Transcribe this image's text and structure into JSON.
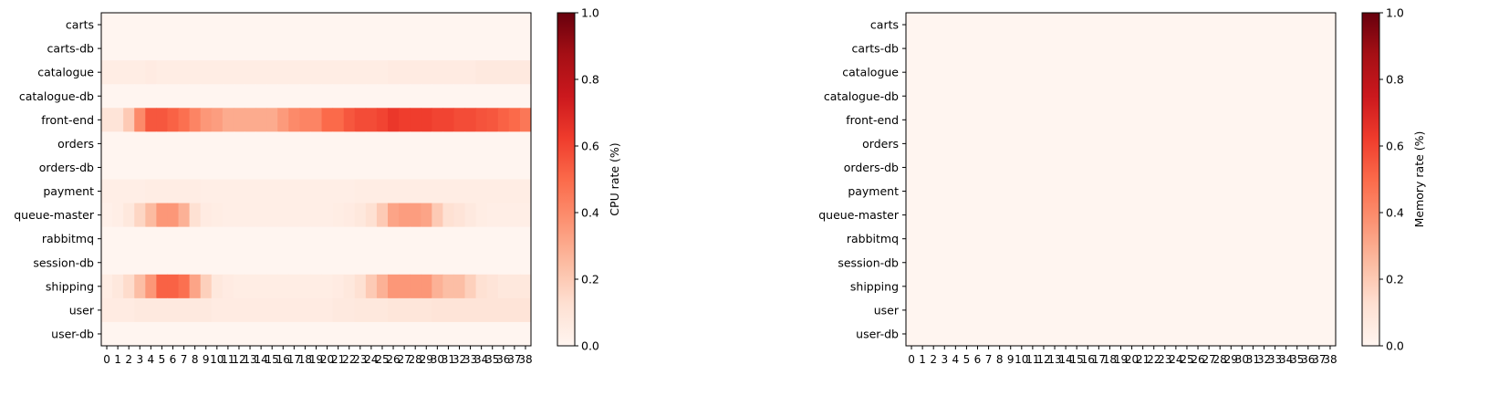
{
  "chart_data": [
    {
      "type": "heatmap",
      "x": [
        0,
        1,
        2,
        3,
        4,
        5,
        6,
        7,
        8,
        9,
        10,
        11,
        12,
        13,
        14,
        15,
        16,
        17,
        18,
        19,
        20,
        21,
        22,
        23,
        24,
        25,
        26,
        27,
        28,
        29,
        30,
        31,
        32,
        33,
        34,
        35,
        36,
        37,
        38
      ],
      "y": [
        "carts",
        "carts-db",
        "catalogue",
        "catalogue-db",
        "front-end",
        "orders",
        "orders-db",
        "payment",
        "queue-master",
        "rabbitmq",
        "session-db",
        "shipping",
        "user",
        "user-db"
      ],
      "values": [
        [
          0,
          0,
          0,
          0,
          0,
          0,
          0,
          0,
          0,
          0,
          0,
          0,
          0,
          0,
          0,
          0,
          0,
          0,
          0,
          0,
          0,
          0,
          0,
          0,
          0,
          0,
          0,
          0,
          0,
          0,
          0,
          0,
          0,
          0,
          0,
          0,
          0,
          0,
          0
        ],
        [
          0,
          0,
          0,
          0,
          0,
          0,
          0,
          0,
          0,
          0,
          0,
          0,
          0,
          0,
          0,
          0,
          0,
          0,
          0,
          0,
          0,
          0,
          0,
          0,
          0,
          0,
          0,
          0,
          0,
          0,
          0,
          0,
          0,
          0,
          0,
          0,
          0,
          0,
          0
        ],
        [
          0.05,
          0.05,
          0.05,
          0.05,
          0.06,
          0.05,
          0.05,
          0.05,
          0.05,
          0.05,
          0.05,
          0.05,
          0.05,
          0.05,
          0.05,
          0.05,
          0.05,
          0.05,
          0.05,
          0.05,
          0.05,
          0.05,
          0.05,
          0.05,
          0.05,
          0.05,
          0.06,
          0.06,
          0.06,
          0.06,
          0.06,
          0.06,
          0.06,
          0.06,
          0.07,
          0.07,
          0.07,
          0.07,
          0.07
        ],
        [
          0,
          0,
          0,
          0,
          0,
          0,
          0,
          0,
          0,
          0,
          0,
          0,
          0,
          0,
          0,
          0,
          0,
          0,
          0,
          0,
          0,
          0,
          0,
          0,
          0,
          0,
          0,
          0,
          0,
          0,
          0,
          0,
          0,
          0,
          0,
          0,
          0,
          0,
          0
        ],
        [
          0.1,
          0.1,
          0.2,
          0.4,
          0.55,
          0.55,
          0.52,
          0.48,
          0.42,
          0.36,
          0.34,
          0.3,
          0.3,
          0.3,
          0.3,
          0.3,
          0.35,
          0.4,
          0.42,
          0.42,
          0.5,
          0.5,
          0.55,
          0.58,
          0.58,
          0.6,
          0.64,
          0.62,
          0.62,
          0.62,
          0.6,
          0.6,
          0.58,
          0.58,
          0.56,
          0.55,
          0.52,
          0.5,
          0.46
        ],
        [
          0,
          0,
          0,
          0,
          0,
          0,
          0,
          0,
          0,
          0,
          0,
          0,
          0,
          0,
          0,
          0,
          0,
          0,
          0,
          0,
          0,
          0,
          0,
          0,
          0,
          0,
          0,
          0,
          0,
          0,
          0,
          0,
          0,
          0,
          0,
          0,
          0,
          0,
          0
        ],
        [
          0,
          0,
          0,
          0,
          0,
          0,
          0,
          0,
          0,
          0,
          0,
          0,
          0,
          0,
          0,
          0,
          0,
          0,
          0,
          0,
          0,
          0,
          0,
          0,
          0,
          0,
          0,
          0,
          0,
          0,
          0,
          0,
          0,
          0,
          0,
          0,
          0,
          0,
          0
        ],
        [
          0.04,
          0.04,
          0.04,
          0.04,
          0.05,
          0.05,
          0.05,
          0.05,
          0.05,
          0.04,
          0.04,
          0.04,
          0.04,
          0.04,
          0.04,
          0.04,
          0.04,
          0.04,
          0.04,
          0.04,
          0.04,
          0.04,
          0.04,
          0.05,
          0.05,
          0.05,
          0.05,
          0.05,
          0.05,
          0.05,
          0.05,
          0.05,
          0.05,
          0.05,
          0.05,
          0.05,
          0.05,
          0.05,
          0.05
        ],
        [
          0.03,
          0.04,
          0.08,
          0.16,
          0.25,
          0.36,
          0.36,
          0.28,
          0.12,
          0.06,
          0.05,
          0.04,
          0.04,
          0.04,
          0.04,
          0.04,
          0.04,
          0.04,
          0.04,
          0.04,
          0.04,
          0.05,
          0.06,
          0.08,
          0.12,
          0.2,
          0.32,
          0.34,
          0.34,
          0.32,
          0.2,
          0.12,
          0.1,
          0.07,
          0.05,
          0.04,
          0.04,
          0.04,
          0.04
        ],
        [
          0,
          0,
          0,
          0,
          0,
          0,
          0,
          0,
          0,
          0,
          0,
          0,
          0,
          0,
          0,
          0,
          0,
          0,
          0,
          0,
          0,
          0,
          0,
          0,
          0,
          0,
          0,
          0,
          0,
          0,
          0,
          0,
          0,
          0,
          0,
          0,
          0,
          0,
          0
        ],
        [
          0,
          0,
          0,
          0,
          0,
          0,
          0,
          0,
          0,
          0,
          0,
          0,
          0,
          0,
          0,
          0,
          0,
          0,
          0,
          0,
          0,
          0,
          0,
          0,
          0,
          0,
          0,
          0,
          0,
          0,
          0,
          0,
          0,
          0,
          0,
          0,
          0,
          0,
          0
        ],
        [
          0.05,
          0.08,
          0.14,
          0.24,
          0.36,
          0.52,
          0.52,
          0.48,
          0.32,
          0.18,
          0.08,
          0.06,
          0.05,
          0.05,
          0.05,
          0.05,
          0.05,
          0.05,
          0.05,
          0.05,
          0.05,
          0.06,
          0.08,
          0.12,
          0.2,
          0.28,
          0.36,
          0.36,
          0.36,
          0.36,
          0.28,
          0.24,
          0.24,
          0.18,
          0.12,
          0.1,
          0.08,
          0.08,
          0.08
        ],
        [
          0.06,
          0.06,
          0.06,
          0.07,
          0.07,
          0.07,
          0.07,
          0.07,
          0.07,
          0.07,
          0.06,
          0.06,
          0.06,
          0.06,
          0.06,
          0.06,
          0.06,
          0.06,
          0.06,
          0.06,
          0.06,
          0.07,
          0.07,
          0.08,
          0.08,
          0.08,
          0.09,
          0.09,
          0.09,
          0.09,
          0.1,
          0.1,
          0.1,
          0.1,
          0.1,
          0.1,
          0.1,
          0.1,
          0.1
        ],
        [
          0,
          0,
          0,
          0,
          0,
          0,
          0,
          0,
          0,
          0,
          0,
          0,
          0,
          0,
          0,
          0,
          0,
          0,
          0,
          0,
          0,
          0,
          0,
          0,
          0,
          0,
          0,
          0,
          0,
          0,
          0,
          0,
          0,
          0,
          0,
          0,
          0,
          0,
          0
        ]
      ],
      "colormap": "Reds",
      "vmin": 0,
      "vmax": 1,
      "colorbar": {
        "label": "CPU rate (%)",
        "ticks": [
          "0.0",
          "0.2",
          "0.4",
          "0.6",
          "0.8",
          "1.0"
        ]
      }
    },
    {
      "type": "heatmap",
      "x": [
        0,
        1,
        2,
        3,
        4,
        5,
        6,
        7,
        8,
        9,
        10,
        11,
        12,
        13,
        14,
        15,
        16,
        17,
        18,
        19,
        20,
        21,
        22,
        23,
        24,
        25,
        26,
        27,
        28,
        29,
        30,
        31,
        32,
        33,
        34,
        35,
        36,
        37,
        38
      ],
      "y": [
        "carts",
        "carts-db",
        "catalogue",
        "catalogue-db",
        "front-end",
        "orders",
        "orders-db",
        "payment",
        "queue-master",
        "rabbitmq",
        "session-db",
        "shipping",
        "user",
        "user-db"
      ],
      "values": "all 0",
      "colormap": "Reds",
      "vmin": 0,
      "vmax": 1,
      "colorbar": {
        "label": "Memory rate (%)",
        "ticks": [
          "0.0",
          "0.2",
          "0.4",
          "0.6",
          "0.8",
          "1.0"
        ]
      }
    }
  ]
}
